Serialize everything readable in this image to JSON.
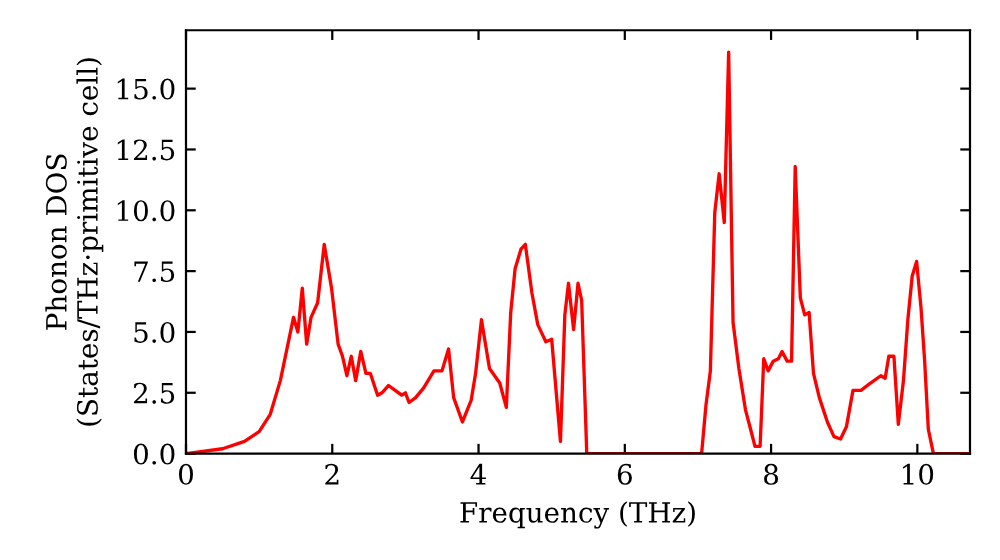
{
  "chart_data": {
    "type": "line",
    "xlabel": "Frequency (THz)",
    "ylabel": "Phonon DOS\n(States/THz·primitive cell)",
    "series": [
      {
        "color": "#ff0000",
        "x": [
          0,
          0.5,
          0.8,
          1.0,
          1.15,
          1.29,
          1.47,
          1.53,
          1.59,
          1.65,
          1.71,
          1.8,
          1.89,
          1.99,
          2.08,
          2.14,
          2.2,
          2.26,
          2.32,
          2.39,
          2.46,
          2.52,
          2.62,
          2.68,
          2.77,
          2.86,
          2.95,
          3.0,
          3.05,
          3.14,
          3.25,
          3.39,
          3.5,
          3.59,
          3.66,
          3.78,
          3.9,
          3.96,
          4.04,
          4.15,
          4.29,
          4.38,
          4.44,
          4.5,
          4.58,
          4.64,
          4.73,
          4.81,
          4.92,
          5.0,
          5.12,
          5.18,
          5.23,
          5.3,
          5.36,
          5.41,
          5.48,
          5.53,
          7.05,
          7.11,
          7.17,
          7.23,
          7.29,
          7.36,
          7.42,
          7.48,
          7.56,
          7.65,
          7.72,
          7.78,
          7.85,
          7.9,
          7.96,
          8.03,
          8.1,
          8.15,
          8.22,
          8.28,
          8.33,
          8.4,
          8.46,
          8.52,
          8.58,
          8.66,
          8.77,
          8.86,
          8.95,
          9.03,
          9.12,
          9.23,
          9.36,
          9.5,
          9.56,
          9.61,
          9.68,
          9.74,
          9.81,
          9.87,
          9.93,
          9.99,
          10.05,
          10.1,
          10.15,
          10.22,
          10.71
        ],
        "values": [
          0,
          0.2,
          0.5,
          0.9,
          1.6,
          3.0,
          5.6,
          5.0,
          6.8,
          4.5,
          5.6,
          6.2,
          8.6,
          6.8,
          4.5,
          4.0,
          3.2,
          4.0,
          3.0,
          4.2,
          3.3,
          3.3,
          2.4,
          2.5,
          2.8,
          2.6,
          2.4,
          2.5,
          2.1,
          2.3,
          2.7,
          3.4,
          3.4,
          4.3,
          2.3,
          1.3,
          2.2,
          3.3,
          5.5,
          3.5,
          2.9,
          1.9,
          5.8,
          7.6,
          8.4,
          8.6,
          6.6,
          5.3,
          4.6,
          4.7,
          0.5,
          5.7,
          7.0,
          5.1,
          7.0,
          6.3,
          0,
          0,
          0,
          2.0,
          3.4,
          9.9,
          11.5,
          9.5,
          16.5,
          5.4,
          3.5,
          1.8,
          1.0,
          0.3,
          0.3,
          3.9,
          3.4,
          3.8,
          3.9,
          4.2,
          3.8,
          3.8,
          11.8,
          6.4,
          5.7,
          5.8,
          3.3,
          2.3,
          1.3,
          0.7,
          0.6,
          1.1,
          2.6,
          2.6,
          2.9,
          3.2,
          3.1,
          4.0,
          4.0,
          1.2,
          3.0,
          5.5,
          7.3,
          7.9,
          6.0,
          3.8,
          1.0,
          0,
          0
        ]
      }
    ],
    "xlim": [
      0,
      10.72
    ],
    "ylim": [
      0,
      17.4
    ],
    "xticks": [
      0,
      2,
      4,
      6,
      8,
      10
    ],
    "yticks": [
      {
        "value": 0,
        "label": "0.0"
      },
      2.5,
      {
        "value": 5,
        "label": "5.0"
      },
      7.5,
      {
        "value": 10,
        "label": "10.0"
      },
      12.5,
      {
        "value": 15,
        "label": "15.0"
      }
    ],
    "grid": false,
    "legend": false
  }
}
